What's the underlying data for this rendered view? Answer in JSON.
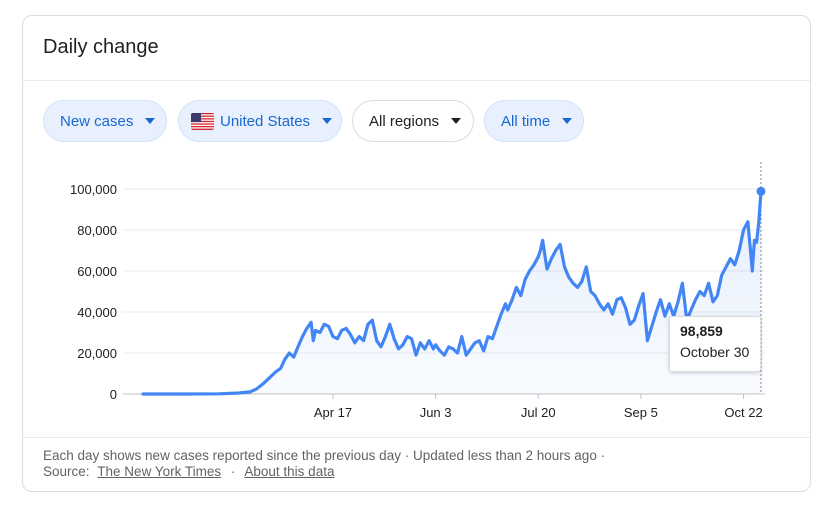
{
  "card": {
    "title": "Daily change"
  },
  "filters": {
    "metric": "New cases",
    "country": "United States",
    "country_flag": "us-flag-icon",
    "region": "All regions",
    "period": "All time"
  },
  "tooltip": {
    "value": "98,859",
    "date": "October 30"
  },
  "footer": {
    "line1": "Each day shows new cases reported since the previous day · Updated less than 2 hours ago ·",
    "source_label": "Source:",
    "source_link": "The New York Times",
    "separator": "·",
    "about_link": "About this data"
  },
  "colors": {
    "line": "#4285f4",
    "accent": "#1967d2",
    "chip_bg": "#e8f0fe"
  },
  "chart_data": {
    "type": "area",
    "title": "",
    "xlabel": "",
    "ylabel": "",
    "ylim": [
      0,
      100000
    ],
    "y_ticks": [
      0,
      20000,
      40000,
      60000,
      80000,
      100000
    ],
    "y_tick_labels": [
      "0",
      "20,000",
      "40,000",
      "60,000",
      "80,000",
      "100,000"
    ],
    "x_ticks": [
      "2020-04-17",
      "2020-06-03",
      "2020-07-20",
      "2020-09-05",
      "2020-10-22"
    ],
    "x_tick_labels": [
      "Apr 17",
      "Jun 3",
      "Jul 20",
      "Sep 5",
      "Oct 22"
    ],
    "x_range": [
      "2020-01-21",
      "2020-10-30"
    ],
    "grid": true,
    "highlight": {
      "x": "2020-10-30",
      "y": 98859
    },
    "series": [
      {
        "points": [
          [
            "2020-01-21",
            0
          ],
          [
            "2020-02-10",
            0
          ],
          [
            "2020-02-25",
            100
          ],
          [
            "2020-03-05",
            500
          ],
          [
            "2020-03-10",
            1000
          ],
          [
            "2020-03-13",
            2500
          ],
          [
            "2020-03-16",
            5000
          ],
          [
            "2020-03-19",
            8000
          ],
          [
            "2020-03-22",
            11000
          ],
          [
            "2020-03-24",
            12500
          ],
          [
            "2020-03-26",
            17000
          ],
          [
            "2020-03-28",
            20000
          ],
          [
            "2020-03-30",
            18000
          ],
          [
            "2020-04-01",
            23000
          ],
          [
            "2020-04-03",
            28000
          ],
          [
            "2020-04-05",
            32000
          ],
          [
            "2020-04-07",
            35000
          ],
          [
            "2020-04-08",
            26000
          ],
          [
            "2020-04-09",
            31000
          ],
          [
            "2020-04-11",
            30000
          ],
          [
            "2020-04-13",
            34000
          ],
          [
            "2020-04-15",
            33000
          ],
          [
            "2020-04-17",
            28000
          ],
          [
            "2020-04-19",
            27000
          ],
          [
            "2020-04-21",
            31000
          ],
          [
            "2020-04-23",
            32000
          ],
          [
            "2020-04-25",
            29000
          ],
          [
            "2020-04-27",
            25000
          ],
          [
            "2020-04-29",
            28000
          ],
          [
            "2020-05-01",
            26000
          ],
          [
            "2020-05-03",
            34000
          ],
          [
            "2020-05-05",
            36000
          ],
          [
            "2020-05-07",
            26000
          ],
          [
            "2020-05-09",
            23000
          ],
          [
            "2020-05-11",
            28000
          ],
          [
            "2020-05-13",
            34000
          ],
          [
            "2020-05-15",
            27000
          ],
          [
            "2020-05-17",
            22000
          ],
          [
            "2020-05-19",
            24000
          ],
          [
            "2020-05-21",
            28000
          ],
          [
            "2020-05-23",
            27000
          ],
          [
            "2020-05-25",
            19000
          ],
          [
            "2020-05-27",
            25000
          ],
          [
            "2020-05-29",
            22000
          ],
          [
            "2020-05-31",
            26000
          ],
          [
            "2020-06-02",
            22000
          ],
          [
            "2020-06-03",
            24000
          ],
          [
            "2020-06-05",
            21000
          ],
          [
            "2020-06-07",
            19000
          ],
          [
            "2020-06-09",
            23000
          ],
          [
            "2020-06-11",
            22000
          ],
          [
            "2020-06-13",
            20000
          ],
          [
            "2020-06-15",
            28000
          ],
          [
            "2020-06-17",
            19000
          ],
          [
            "2020-06-19",
            22000
          ],
          [
            "2020-06-21",
            25000
          ],
          [
            "2020-06-23",
            26000
          ],
          [
            "2020-06-25",
            21000
          ],
          [
            "2020-06-27",
            28000
          ],
          [
            "2020-06-29",
            27000
          ],
          [
            "2020-07-01",
            33000
          ],
          [
            "2020-07-03",
            39000
          ],
          [
            "2020-07-05",
            44000
          ],
          [
            "2020-07-06",
            41000
          ],
          [
            "2020-07-08",
            46000
          ],
          [
            "2020-07-10",
            52000
          ],
          [
            "2020-07-12",
            48000
          ],
          [
            "2020-07-14",
            56000
          ],
          [
            "2020-07-16",
            60000
          ],
          [
            "2020-07-18",
            63000
          ],
          [
            "2020-07-20",
            67000
          ],
          [
            "2020-07-21",
            70000
          ],
          [
            "2020-07-22",
            75000
          ],
          [
            "2020-07-24",
            61000
          ],
          [
            "2020-07-26",
            66000
          ],
          [
            "2020-07-28",
            70000
          ],
          [
            "2020-07-30",
            73000
          ],
          [
            "2020-08-01",
            62000
          ],
          [
            "2020-08-03",
            57000
          ],
          [
            "2020-08-05",
            54000
          ],
          [
            "2020-08-07",
            52000
          ],
          [
            "2020-08-09",
            55000
          ],
          [
            "2020-08-11",
            62000
          ],
          [
            "2020-08-13",
            50000
          ],
          [
            "2020-08-15",
            48000
          ],
          [
            "2020-08-17",
            44000
          ],
          [
            "2020-08-19",
            41000
          ],
          [
            "2020-08-21",
            44000
          ],
          [
            "2020-08-23",
            39000
          ],
          [
            "2020-08-25",
            46000
          ],
          [
            "2020-08-27",
            47000
          ],
          [
            "2020-08-29",
            42000
          ],
          [
            "2020-08-31",
            34000
          ],
          [
            "2020-09-02",
            36000
          ],
          [
            "2020-09-04",
            43000
          ],
          [
            "2020-09-06",
            49000
          ],
          [
            "2020-09-08",
            26000
          ],
          [
            "2020-09-10",
            33000
          ],
          [
            "2020-09-12",
            40000
          ],
          [
            "2020-09-14",
            46000
          ],
          [
            "2020-09-16",
            38000
          ],
          [
            "2020-09-18",
            44000
          ],
          [
            "2020-09-20",
            38000
          ],
          [
            "2020-09-22",
            45000
          ],
          [
            "2020-09-24",
            54000
          ],
          [
            "2020-09-26",
            36000
          ],
          [
            "2020-09-28",
            41000
          ],
          [
            "2020-09-30",
            46000
          ],
          [
            "2020-10-02",
            50000
          ],
          [
            "2020-10-04",
            48000
          ],
          [
            "2020-10-06",
            54000
          ],
          [
            "2020-10-08",
            45000
          ],
          [
            "2020-10-10",
            48000
          ],
          [
            "2020-10-12",
            58000
          ],
          [
            "2020-10-14",
            62000
          ],
          [
            "2020-10-16",
            66000
          ],
          [
            "2020-10-18",
            63000
          ],
          [
            "2020-10-20",
            70000
          ],
          [
            "2020-10-22",
            80000
          ],
          [
            "2020-10-24",
            84000
          ],
          [
            "2020-10-26",
            60000
          ],
          [
            "2020-10-27",
            75000
          ],
          [
            "2020-10-28",
            74000
          ],
          [
            "2020-10-29",
            84000
          ],
          [
            "2020-10-30",
            98859
          ]
        ]
      }
    ]
  }
}
